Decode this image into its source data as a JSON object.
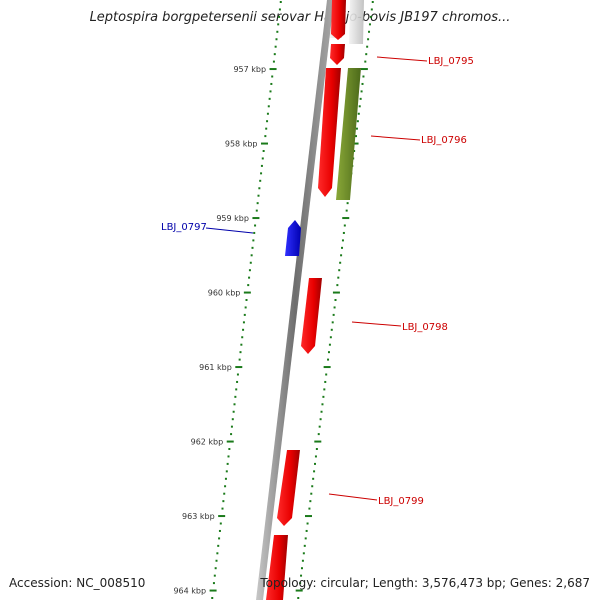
{
  "title": "Leptospira borgpetersenii serovar Hardjo-bovis JB197 chromos...",
  "accession": "Accession: NC_008510",
  "summary": "Topology: circular; Length: 3,576,473 bp; Genes: 2,687",
  "colors": {
    "backbone": "#8a8a8a",
    "tick": "#1a7a1a",
    "forward_gene": "#ee0000",
    "forward_label": "#cc0000",
    "reverse_gene": "#0000ee",
    "reverse_label": "#0000aa",
    "other_feature": "#6e8e2a"
  },
  "kbp_labels": [
    "957 kbp",
    "958 kbp",
    "959 kbp",
    "960 kbp",
    "961 kbp",
    "962 kbp",
    "963 kbp",
    "964 kbp"
  ],
  "genes": [
    {
      "label": "LBJ_0795",
      "strand": "forward"
    },
    {
      "label": "LBJ_0796",
      "strand": "forward"
    },
    {
      "label": "LBJ_0797",
      "strand": "reverse"
    },
    {
      "label": "LBJ_0798",
      "strand": "forward"
    },
    {
      "label": "LBJ_0799",
      "strand": "forward"
    }
  ]
}
